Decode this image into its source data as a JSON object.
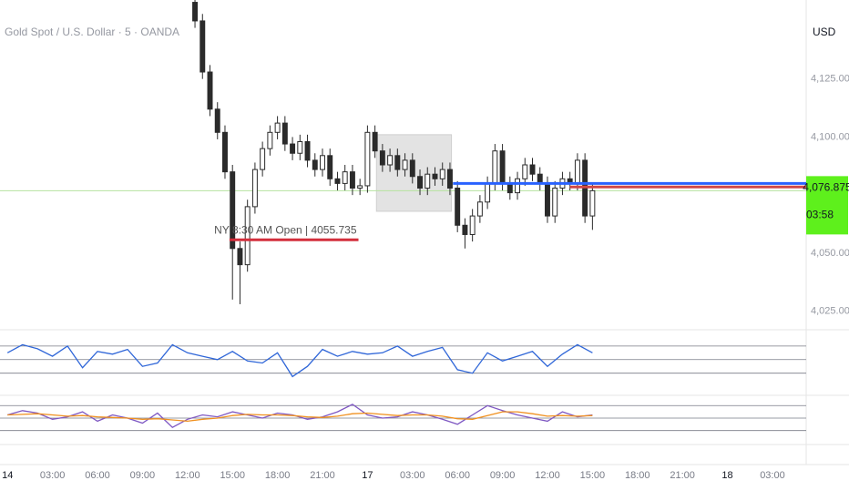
{
  "chart_data": [
    {
      "type": "candlestick",
      "title": "Gold Spot / U.S. Dollar · 5 · OANDA",
      "currency": "USD",
      "color": "#2b2b2b",
      "x": [
        12.5,
        13,
        13.5,
        14,
        14.5,
        15,
        15.5,
        16,
        16.5,
        17,
        17.5,
        18,
        18.5,
        19,
        19.5,
        20,
        20.5,
        21,
        21.5,
        22,
        22.5,
        23,
        23.5,
        24,
        24.5,
        25,
        25.5,
        26,
        26.5,
        27,
        27.5,
        28,
        28.5,
        29,
        29.5,
        30,
        30.5,
        31,
        31.5,
        32,
        32.5,
        33,
        33.5,
        34,
        34.5,
        35,
        35.5,
        36,
        36.5,
        37,
        37.5,
        38,
        38.5,
        39
      ],
      "open": [
        4158,
        4150,
        4128,
        4112,
        4102,
        4085,
        4052,
        4045,
        4070,
        4086,
        4095,
        4102,
        4106,
        4097,
        4093,
        4098,
        4090,
        4086,
        4092,
        4082,
        4080,
        4085,
        4078,
        4079,
        4102,
        4094,
        4088,
        4092,
        4086,
        4090,
        4083,
        4078,
        4084,
        4082,
        4086,
        4078,
        4062,
        4058,
        4066,
        4072,
        4080,
        4094,
        4080,
        4076,
        4082,
        4088,
        4084,
        4080,
        4066,
        4078,
        4082,
        4080,
        4090,
        4066
      ],
      "high": [
        4161,
        4153,
        4131,
        4115,
        4105,
        4088,
        4055,
        4073,
        4089,
        4098,
        4105,
        4109,
        4109,
        4100,
        4101,
        4101,
        4093,
        4095,
        4095,
        4085,
        4088,
        4088,
        4082,
        4105,
        4105,
        4097,
        4095,
        4095,
        4093,
        4093,
        4086,
        4087,
        4087,
        4089,
        4089,
        4081,
        4065,
        4069,
        4075,
        4083,
        4097,
        4097,
        4083,
        4085,
        4091,
        4091,
        4087,
        4083,
        4081,
        4085,
        4085,
        4093,
        4093,
        4080
      ],
      "low": [
        4147,
        4125,
        4109,
        4099,
        4082,
        4030,
        4028,
        4042,
        4067,
        4083,
        4092,
        4099,
        4094,
        4090,
        4090,
        4087,
        4083,
        4083,
        4079,
        4077,
        4077,
        4075,
        4075,
        4076,
        4091,
        4085,
        4085,
        4083,
        4083,
        4080,
        4075,
        4075,
        4079,
        4079,
        4075,
        4059,
        4052,
        4055,
        4063,
        4069,
        4077,
        4077,
        4073,
        4073,
        4079,
        4081,
        4077,
        4063,
        4063,
        4075,
        4077,
        4077,
        4063,
        4060
      ],
      "close": [
        4150,
        4128,
        4112,
        4102,
        4085,
        4052,
        4045,
        4070,
        4086,
        4095,
        4102,
        4106,
        4097,
        4093,
        4098,
        4090,
        4086,
        4092,
        4082,
        4080,
        4085,
        4078,
        4079,
        4102,
        4094,
        4088,
        4092,
        4086,
        4090,
        4083,
        4078,
        4084,
        4082,
        4086,
        4078,
        4062,
        4058,
        4066,
        4072,
        4080,
        4094,
        4080,
        4076,
        4082,
        4088,
        4084,
        4080,
        4066,
        4078,
        4082,
        4080,
        4090,
        4066,
        4076.875
      ],
      "xlim": [
        -0.5,
        53.25
      ],
      "xticks": [
        {
          "value": 0,
          "label": "14"
        },
        {
          "value": 3,
          "label": "03:00"
        },
        {
          "value": 6,
          "label": "06:00"
        },
        {
          "value": 9,
          "label": "09:00"
        },
        {
          "value": 12,
          "label": "12:00"
        },
        {
          "value": 15,
          "label": "15:00"
        },
        {
          "value": 18,
          "label": "18:00"
        },
        {
          "value": 21,
          "label": "21:00"
        },
        {
          "value": 24,
          "label": "17"
        },
        {
          "value": 27,
          "label": "03:00"
        },
        {
          "value": 30,
          "label": "06:00"
        },
        {
          "value": 33,
          "label": "09:00"
        },
        {
          "value": 36,
          "label": "12:00"
        },
        {
          "value": 39,
          "label": "15:00"
        },
        {
          "value": 42,
          "label": "18:00"
        },
        {
          "value": 45,
          "label": "21:00"
        },
        {
          "value": 48,
          "label": "18"
        },
        {
          "value": 51,
          "label": "03:00"
        }
      ],
      "ylim": [
        4017,
        4159
      ],
      "yticks": [
        {
          "value": 4025,
          "label": "4,025.000"
        },
        {
          "value": 4050,
          "label": "4,050.000"
        },
        {
          "value": 4100,
          "label": "4,100.000"
        },
        {
          "value": 4125,
          "label": "4,125.000"
        }
      ],
      "levels": [
        {
          "label": "NY 8:30 AM Open | 4055.735",
          "value": 4055.735,
          "x": [
            14.8,
            23.4
          ],
          "color": "#d32f3c"
        },
        {
          "value": 4080,
          "x": [
            29.7,
            53.25
          ],
          "color": "#2962ff"
        },
        {
          "value": 4078.5,
          "x": [
            37.5,
            53.25
          ],
          "color": "#d04848"
        }
      ],
      "box": {
        "x": [
          24.6,
          29.6
        ],
        "y": [
          4068,
          4101
        ],
        "color": "#e3e3e3"
      },
      "last_price": {
        "value": 4076.875,
        "label": "4,076.875",
        "countdown": "03:58",
        "color": "#5ef01c"
      }
    },
    {
      "type": "line",
      "x": [
        0,
        1,
        2,
        3,
        4,
        5,
        6,
        7,
        8,
        9,
        10,
        11,
        12,
        13,
        14,
        15,
        16,
        17,
        18,
        19,
        20,
        21,
        22,
        23,
        24,
        25,
        26,
        27,
        28,
        29,
        30,
        31,
        32,
        33,
        34,
        35,
        36,
        37,
        38,
        39
      ],
      "series": [
        {
          "color": "#2f66d8",
          "values": [
            60,
            72,
            66,
            55,
            70,
            38,
            62,
            58,
            65,
            40,
            45,
            72,
            60,
            55,
            50,
            62,
            48,
            45,
            60,
            25,
            40,
            65,
            55,
            62,
            58,
            60,
            70,
            55,
            62,
            68,
            35,
            30,
            60,
            48,
            55,
            62,
            40,
            58,
            72,
            60
          ]
        }
      ],
      "ylim": [
        0,
        90
      ],
      "levels": [
        70,
        50,
        30
      ]
    },
    {
      "type": "line",
      "x": [
        0,
        1,
        2,
        3,
        4,
        5,
        6,
        7,
        8,
        9,
        10,
        11,
        12,
        13,
        14,
        15,
        16,
        17,
        18,
        19,
        20,
        21,
        22,
        23,
        24,
        25,
        26,
        27,
        28,
        29,
        30,
        31,
        32,
        33,
        34,
        35,
        36,
        37,
        38,
        39
      ],
      "series": [
        {
          "color": "#7e57c2",
          "values": [
            55,
            62,
            58,
            48,
            52,
            60,
            45,
            55,
            50,
            42,
            58,
            35,
            48,
            55,
            52,
            60,
            55,
            50,
            58,
            55,
            48,
            52,
            60,
            72,
            55,
            50,
            52,
            60,
            55,
            48,
            40,
            55,
            70,
            62,
            55,
            50,
            45,
            60,
            52,
            55
          ]
        },
        {
          "color": "#f0901e",
          "values": [
            55,
            56,
            57,
            55,
            53,
            54,
            52,
            51,
            50,
            48,
            49,
            47,
            45,
            48,
            50,
            54,
            56,
            55,
            55,
            54,
            52,
            51,
            53,
            57,
            58,
            56,
            54,
            55,
            55,
            53,
            49,
            48,
            54,
            60,
            60,
            57,
            53,
            54,
            53,
            54
          ]
        }
      ],
      "ylim": [
        12,
        85
      ],
      "levels": [
        70,
        50,
        30
      ]
    }
  ]
}
